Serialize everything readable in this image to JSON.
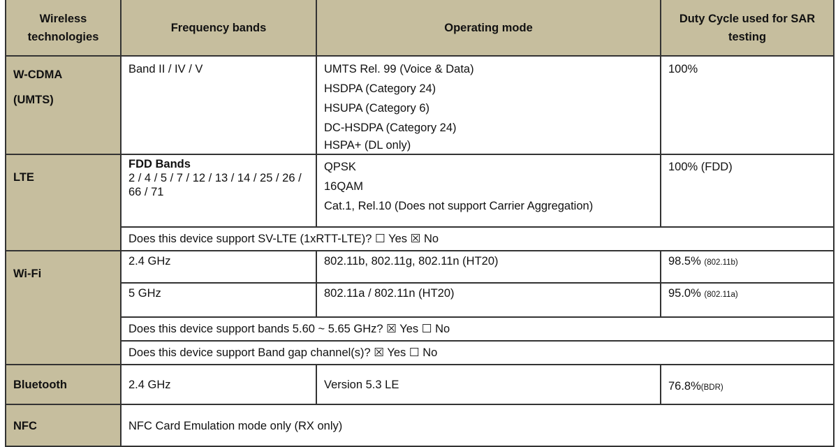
{
  "header": {
    "col1": "Wireless technologies",
    "col2": "Frequency bands",
    "col3": "Operating mode",
    "col4": "Duty Cycle used for SAR testing"
  },
  "wcdma": {
    "tech_line1": "W-CDMA",
    "tech_line2": "(UMTS)",
    "bands": "Band II / IV / V",
    "modes": [
      "UMTS Rel. 99 (Voice & Data)",
      "HSDPA (Category 24)",
      "HSUPA (Category 6)",
      "DC-HSDPA (Category 24)",
      "HSPA+ (DL only)"
    ],
    "duty": "100%"
  },
  "lte": {
    "tech": "LTE",
    "bands_title": "FDD Bands",
    "bands": "2 / 4 / 5 / 7 / 12 / 13 / 14 / 25 / 26 / 66 / 71",
    "modes": [
      "QPSK",
      "16QAM",
      "Cat.1, Rel.10 (Does not support Carrier Aggregation)"
    ],
    "duty": "100% (FDD)",
    "svlte": "Does this device support SV-LTE (1xRTT-LTE)? ☐ Yes ☒ No"
  },
  "wifi": {
    "tech": "Wi-Fi",
    "rows": [
      {
        "band": "2.4 GHz",
        "mode": "802.11b, 802.11g, 802.11n (HT20)",
        "duty": "98.5%",
        "duty_note": "(802.11b)"
      },
      {
        "band": "5 GHz",
        "mode": "802.11a / 802.11n (HT20)",
        "duty": "95.0%",
        "duty_note": "(802.11a)"
      }
    ],
    "q1": "Does this device support bands 5.60 ~ 5.65 GHz? ☒ Yes ☐ No",
    "q2": "Does this device support Band gap channel(s)? ☒ Yes ☐ No"
  },
  "bluetooth": {
    "tech": "Bluetooth",
    "band": "2.4 GHz",
    "mode": "Version 5.3 LE",
    "duty": "76.8%",
    "duty_note": "(BDR)"
  },
  "nfc": {
    "tech": "NFC",
    "desc": "NFC Card Emulation mode only (RX only)"
  },
  "colors": {
    "header_bg": "#c6be9e"
  }
}
